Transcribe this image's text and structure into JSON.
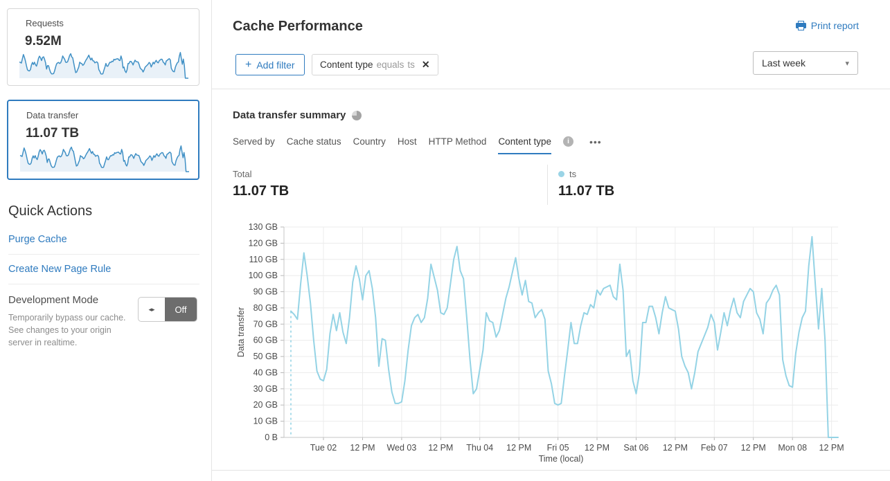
{
  "colors": {
    "accent": "#2f7bbf",
    "chart_line": "#94d3e5",
    "spark_line": "#4090c5",
    "spark_fill": "#e9f1f8",
    "toggle_gray": "#6d6d6d"
  },
  "icons": {
    "plus": "+",
    "close": "✕",
    "caret_down": "▾",
    "more": "•••",
    "toggle_arrows": "◂▸",
    "info": "i"
  },
  "sidebar": {
    "requests_card": {
      "label": "Requests",
      "value": "9.52M"
    },
    "data_transfer_card": {
      "label": "Data transfer",
      "value": "11.07 TB"
    },
    "quick_actions": {
      "title": "Quick Actions",
      "links": [
        {
          "label": "Purge Cache"
        },
        {
          "label": "Create New Page Rule"
        }
      ]
    },
    "development_mode": {
      "title": "Development Mode",
      "description": "Temporarily bypass our cache. See changes to your origin server in realtime.",
      "state": "Off"
    }
  },
  "header": {
    "title": "Cache Performance",
    "print_label": "Print report",
    "add_filter_label": "Add filter",
    "filter_chip": {
      "field": "Content type",
      "operator": "equals",
      "value": "ts"
    },
    "time_range": "Last week"
  },
  "summary": {
    "title": "Data transfer summary",
    "tabs": [
      {
        "label": "Served by"
      },
      {
        "label": "Cache status"
      },
      {
        "label": "Country"
      },
      {
        "label": "Host"
      },
      {
        "label": "HTTP Method"
      },
      {
        "label": "Content type",
        "active": true
      }
    ],
    "total_label": "Total",
    "total_value": "11.07 TB",
    "series_label": "ts",
    "series_value": "11.07 TB"
  },
  "chart_data": {
    "type": "line",
    "title": "Data transfer summary",
    "xlabel": "Time (local)",
    "ylabel": "Data transfer",
    "unit": "GB",
    "ylim": [
      0,
      130
    ],
    "grid": true,
    "dashed_start": true,
    "color": "#94d3e5",
    "yticks": {
      "labels": [
        "0 B",
        "10 GB",
        "20 GB",
        "30 GB",
        "40 GB",
        "50 GB",
        "60 GB",
        "70 GB",
        "80 GB",
        "90 GB",
        "100 GB",
        "110 GB",
        "120 GB",
        "130 GB"
      ],
      "values": [
        0,
        10,
        20,
        30,
        40,
        50,
        60,
        70,
        80,
        90,
        100,
        110,
        120,
        130
      ]
    },
    "xticks": {
      "labels": [
        "Tue 02",
        "12 PM",
        "Wed 03",
        "12 PM",
        "Thu 04",
        "12 PM",
        "Fri 05",
        "12 PM",
        "Sat 06",
        "12 PM",
        "Feb 07",
        "12 PM",
        "Mon 08",
        "12 PM"
      ],
      "hour_offsets": [
        10,
        22,
        34,
        46,
        58,
        70,
        82,
        94,
        106,
        118,
        130,
        142,
        154,
        166
      ]
    },
    "series": [
      {
        "name": "ts",
        "interval": "hourly",
        "values": [
          78,
          76,
          73,
          95,
          114,
          100,
          83,
          60,
          41,
          36,
          35,
          42,
          64,
          76,
          66,
          77,
          65,
          58,
          74,
          96,
          106,
          98,
          85,
          100,
          103,
          92,
          74,
          44,
          61,
          60,
          42,
          28,
          21,
          21,
          22,
          35,
          54,
          69,
          74,
          76,
          71,
          74,
          86,
          107,
          99,
          91,
          77,
          76,
          80,
          95,
          110,
          118,
          103,
          98,
          74,
          48,
          27,
          30,
          42,
          54,
          77,
          72,
          71,
          62,
          66,
          76,
          86,
          93,
          102,
          111,
          98,
          88,
          97,
          84,
          83,
          74,
          77,
          79,
          73,
          41,
          33,
          21,
          20,
          21,
          38,
          54,
          71,
          58,
          58,
          69,
          77,
          76,
          82,
          80,
          91,
          88,
          92,
          93,
          94,
          87,
          85,
          107,
          91,
          50,
          54,
          35,
          27,
          40,
          71,
          71,
          81,
          81,
          74,
          64,
          77,
          87,
          80,
          79,
          78,
          67,
          50,
          44,
          40,
          30,
          40,
          53,
          58,
          63,
          68,
          76,
          71,
          54,
          65,
          77,
          69,
          79,
          86,
          77,
          74,
          84,
          88,
          92,
          90,
          77,
          73,
          64,
          83,
          86,
          91,
          94,
          88,
          48,
          38,
          32,
          31,
          52,
          65,
          74,
          78,
          106,
          124,
          95,
          67,
          92,
          60,
          0,
          0,
          0,
          0
        ]
      }
    ]
  }
}
